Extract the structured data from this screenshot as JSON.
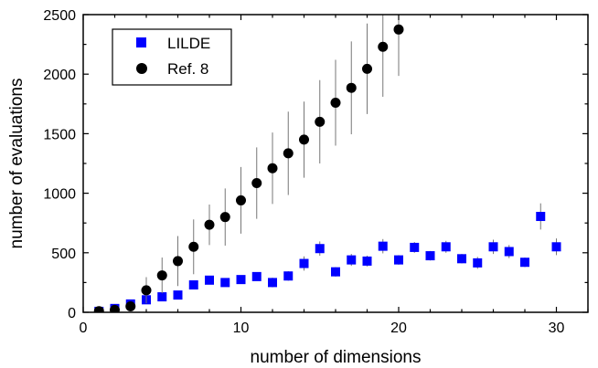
{
  "chart_data": {
    "type": "scatter",
    "title": "",
    "xlabel": "number of dimensions",
    "ylabel": "number of evaluations",
    "xlim": [
      0,
      32
    ],
    "ylim": [
      0,
      2500
    ],
    "xticks": [
      0,
      10,
      20,
      30
    ],
    "yticks": [
      0,
      500,
      1000,
      1500,
      2000,
      2500
    ],
    "grid": false,
    "legend_position": "top-left",
    "series": [
      {
        "name": "LILDE",
        "marker": "square",
        "color": "#0000ff",
        "x": [
          1,
          2,
          3,
          4,
          5,
          6,
          7,
          8,
          9,
          10,
          11,
          12,
          13,
          14,
          15,
          16,
          17,
          18,
          19,
          20,
          21,
          22,
          23,
          24,
          25,
          26,
          27,
          28,
          29,
          30
        ],
        "y": [
          8,
          32,
          70,
          105,
          130,
          145,
          230,
          270,
          250,
          275,
          300,
          250,
          305,
          410,
          535,
          340,
          440,
          430,
          555,
          440,
          545,
          475,
          550,
          450,
          415,
          550,
          510,
          420,
          805,
          550
        ],
        "err": [
          5,
          10,
          15,
          20,
          25,
          20,
          30,
          25,
          30,
          25,
          30,
          40,
          40,
          60,
          60,
          40,
          50,
          45,
          60,
          40,
          45,
          40,
          50,
          40,
          50,
          60,
          55,
          40,
          110,
          70
        ]
      },
      {
        "name": "Ref. 8",
        "marker": "circle",
        "color": "#000000",
        "x": [
          1,
          2,
          3,
          4,
          5,
          6,
          7,
          8,
          9,
          10,
          11,
          12,
          13,
          14,
          15,
          16,
          17,
          18,
          19,
          20
        ],
        "y": [
          10,
          20,
          50,
          185,
          310,
          430,
          550,
          735,
          800,
          940,
          1085,
          1210,
          1335,
          1450,
          1600,
          1760,
          1885,
          2045,
          2230,
          2375
        ],
        "err": [
          5,
          15,
          30,
          110,
          150,
          210,
          230,
          170,
          240,
          280,
          300,
          300,
          350,
          320,
          350,
          360,
          390,
          380,
          420,
          390
        ]
      }
    ]
  }
}
